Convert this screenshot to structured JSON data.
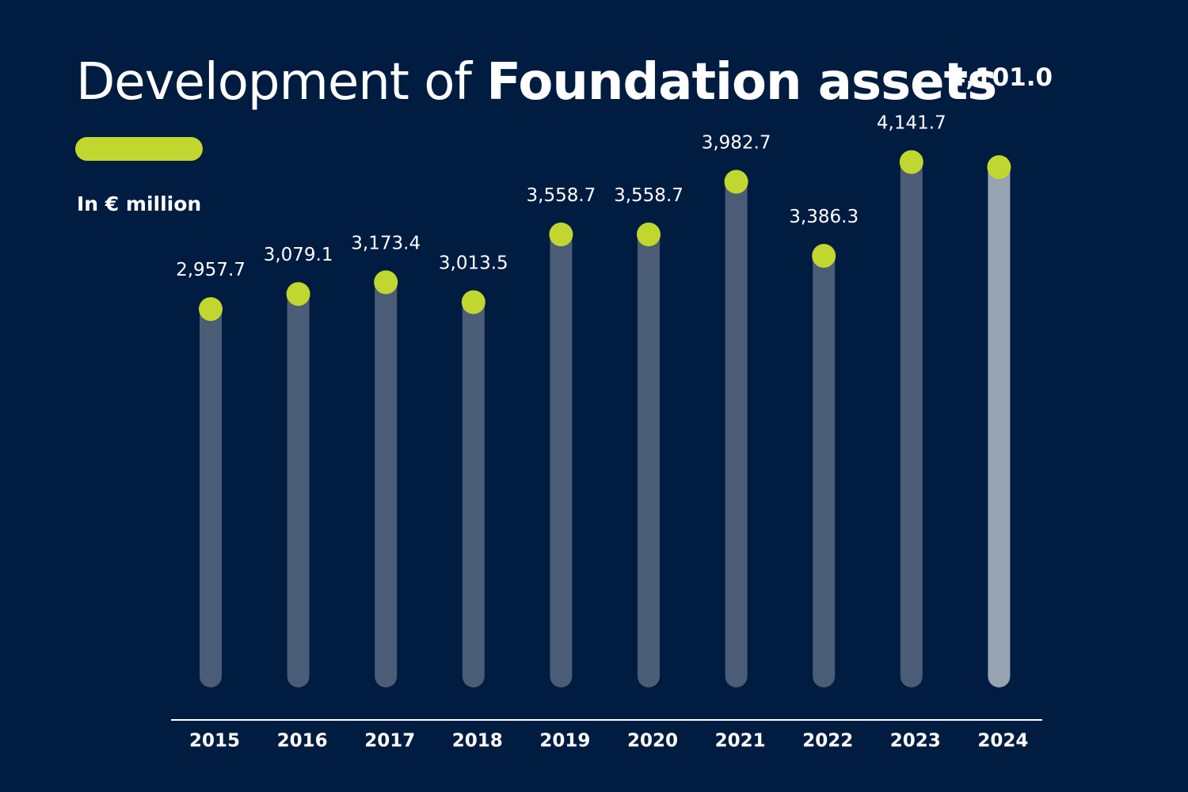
{
  "colors": {
    "background": "#001c40",
    "bar": "#4b5c77",
    "bar_highlight": "#98a3b2",
    "dot": "#c1d72f",
    "accent": "#c1d72f",
    "axis": "#ffffff",
    "text": "#ffffff"
  },
  "heading": {
    "title_regular": "Development of ",
    "title_bold": "Foundation assets"
  },
  "chart_data": {
    "type": "bar",
    "unit": "In € million",
    "categories": [
      "2015",
      "2016",
      "2017",
      "2018",
      "2019",
      "2020",
      "2021",
      "2022",
      "2023",
      "2024"
    ],
    "values": [
      2957.7,
      3079.1,
      3173.4,
      3013.5,
      3558.7,
      3558.7,
      3982.7,
      3386.3,
      4141.7,
      4101.0
    ],
    "value_labels": [
      "2,957.7",
      "3,079.1",
      "3,173.4",
      "3,013.5",
      "3,558.7",
      "3,558.7",
      "3,982.7",
      "3,386.3",
      "4,141.7",
      "4,101.0"
    ],
    "highlight_category": "2024",
    "ylim": [
      0,
      5000
    ],
    "grid": false,
    "legend": "none"
  }
}
